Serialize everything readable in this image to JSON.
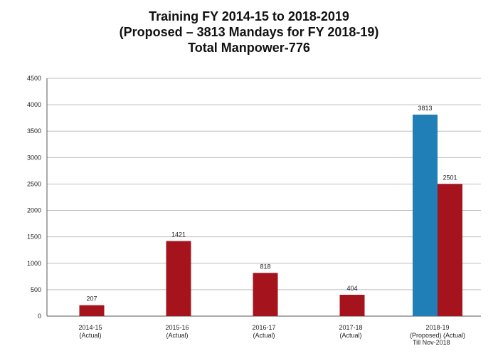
{
  "title_lines": [
    "Training FY 2014-15 to 2018-2019",
    "(Proposed – 3813 Mandays for FY 2018-19)",
    "Total Manpower-776"
  ],
  "footnote": "Till Nov-2018",
  "colors": {
    "actual": "#a5141c",
    "proposed": "#1f7fb6",
    "grid": "#bdbdbd"
  },
  "chart_data": {
    "type": "bar",
    "title": "Training FY 2014-15 to 2018-2019",
    "ylim": [
      0,
      4500
    ],
    "yticks": [
      0,
      500,
      1000,
      1500,
      2000,
      2500,
      3000,
      3500,
      4000,
      4500
    ],
    "grid": true,
    "categories": [
      {
        "line1": "2014-15",
        "line2": "(Actual)"
      },
      {
        "line1": "2015-16",
        "line2": "(Actual)"
      },
      {
        "line1": "2016-17",
        "line2": "(Actual)"
      },
      {
        "line1": "2017-18",
        "line2": "(Actual)"
      },
      {
        "line1": "2018-19",
        "line2": "(Proposed)  (Actual)"
      }
    ],
    "bars": [
      {
        "category": 0,
        "value": 207,
        "status": "actual"
      },
      {
        "category": 1,
        "value": 1421,
        "status": "actual"
      },
      {
        "category": 2,
        "value": 818,
        "status": "actual"
      },
      {
        "category": 3,
        "value": 404,
        "status": "actual"
      },
      {
        "category": 4,
        "value": 3813,
        "status": "proposed"
      },
      {
        "category": 4,
        "value": 2501,
        "status": "actual"
      }
    ]
  }
}
